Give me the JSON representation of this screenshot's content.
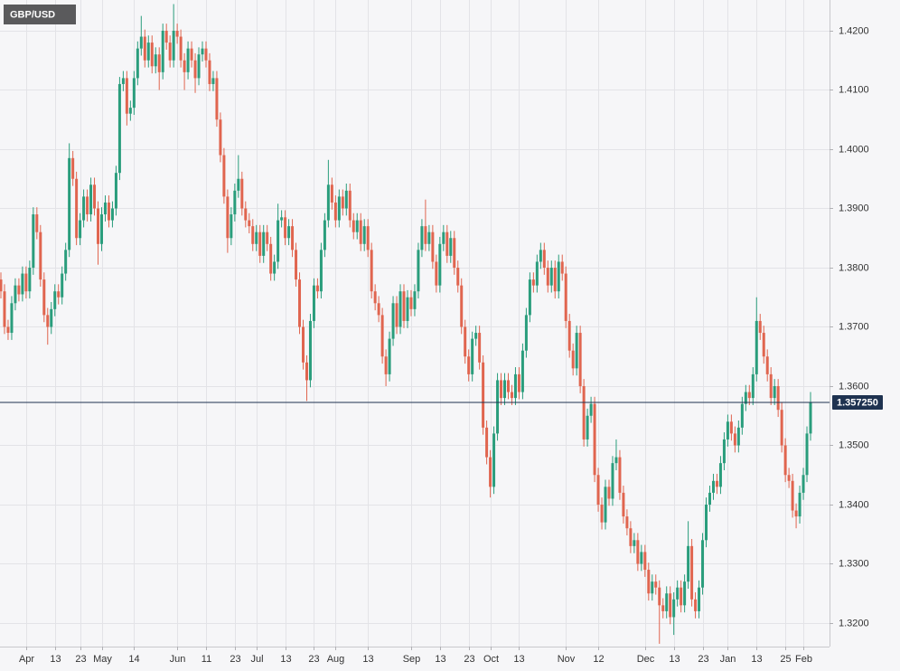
{
  "chart_data": {
    "type": "candlestick",
    "title": "GBP/USD",
    "up_color": "#2a9d7c",
    "down_color": "#e0654f",
    "last_price_color": "#1e3250",
    "grid": true,
    "last_price": {
      "value": 1.35725,
      "label": "1.357250"
    },
    "ylim": [
      1.31603,
      1.42519
    ],
    "yticks": [
      {
        "value": 1.32,
        "label": "1.3200"
      },
      {
        "value": 1.33,
        "label": "1.3300"
      },
      {
        "value": 1.34,
        "label": "1.3400"
      },
      {
        "value": 1.35,
        "label": "1.3500"
      },
      {
        "value": 1.36,
        "label": "1.3600"
      },
      {
        "value": 1.37,
        "label": "1.3700"
      },
      {
        "value": 1.38,
        "label": "1.3800"
      },
      {
        "value": 1.39,
        "label": "1.3900"
      },
      {
        "value": 1.4,
        "label": "1.4000"
      },
      {
        "value": 1.41,
        "label": "1.4100"
      },
      {
        "value": 1.42,
        "label": "1.4200"
      }
    ],
    "categories": [
      null,
      null,
      null,
      null,
      null,
      null,
      null,
      "Apr",
      null,
      null,
      null,
      null,
      null,
      null,
      null,
      "13",
      null,
      null,
      null,
      null,
      null,
      null,
      "23",
      null,
      null,
      null,
      null,
      null,
      "May",
      null,
      null,
      null,
      null,
      null,
      null,
      null,
      null,
      "14",
      null,
      null,
      null,
      null,
      null,
      null,
      null,
      null,
      null,
      null,
      null,
      "Jun",
      null,
      null,
      null,
      null,
      null,
      null,
      null,
      "11",
      null,
      null,
      null,
      null,
      null,
      null,
      null,
      "23",
      null,
      null,
      null,
      null,
      null,
      "Jul",
      null,
      null,
      null,
      null,
      null,
      null,
      null,
      "13",
      null,
      null,
      null,
      null,
      null,
      null,
      null,
      "23",
      null,
      null,
      null,
      null,
      null,
      "Aug",
      null,
      null,
      null,
      null,
      null,
      null,
      null,
      null,
      "13",
      null,
      null,
      null,
      null,
      null,
      null,
      null,
      null,
      null,
      null,
      null,
      "Sep",
      null,
      null,
      null,
      null,
      null,
      null,
      null,
      "13",
      null,
      null,
      null,
      null,
      null,
      null,
      null,
      "23",
      null,
      null,
      null,
      null,
      null,
      "Oct",
      null,
      null,
      null,
      null,
      null,
      null,
      null,
      "13",
      null,
      null,
      null,
      null,
      null,
      null,
      null,
      null,
      null,
      null,
      null,
      null,
      "Nov",
      null,
      null,
      null,
      null,
      null,
      null,
      null,
      null,
      "12",
      null,
      null,
      null,
      null,
      null,
      null,
      null,
      null,
      null,
      null,
      null,
      null,
      "Dec",
      null,
      null,
      null,
      null,
      null,
      null,
      null,
      "13",
      null,
      null,
      null,
      null,
      null,
      null,
      null,
      "23",
      null,
      null,
      null,
      null,
      null,
      null,
      "Jan",
      null,
      null,
      null,
      null,
      null,
      null,
      null,
      "13",
      null,
      null,
      null,
      null,
      null,
      null,
      null,
      "25",
      null,
      null,
      null,
      null,
      "Feb",
      null,
      null
    ],
    "open": [
      1.378,
      1.376,
      1.37,
      1.369,
      1.374,
      1.377,
      1.3755,
      1.379,
      1.376,
      1.38,
      1.389,
      1.386,
      1.378,
      1.372,
      1.37,
      1.373,
      1.376,
      1.375,
      1.379,
      1.383,
      1.3985,
      1.395,
      1.385,
      1.388,
      1.392,
      1.389,
      1.394,
      1.39,
      1.384,
      1.389,
      1.391,
      1.388,
      1.39,
      1.396,
      1.411,
      1.412,
      1.406,
      1.407,
      1.412,
      1.417,
      1.419,
      1.415,
      1.418,
      1.414,
      1.416,
      1.413,
      1.42,
      1.418,
      1.415,
      1.42,
      1.419,
      1.415,
      1.413,
      1.417,
      1.415,
      1.412,
      1.416,
      1.417,
      1.415,
      1.411,
      1.412,
      1.405,
      1.399,
      1.392,
      1.385,
      1.389,
      1.393,
      1.395,
      1.39,
      1.388,
      1.387,
      1.384,
      1.386,
      1.382,
      1.386,
      1.384,
      1.379,
      1.381,
      1.388,
      1.3885,
      1.385,
      1.387,
      1.383,
      1.378,
      1.37,
      1.364,
      1.361,
      1.371,
      1.377,
      1.376,
      1.383,
      1.388,
      1.394,
      1.391,
      1.388,
      1.392,
      1.39,
      1.393,
      1.388,
      1.386,
      1.388,
      1.384,
      1.387,
      1.383,
      1.376,
      1.374,
      1.372,
      1.365,
      1.362,
      1.368,
      1.374,
      1.37,
      1.376,
      1.371,
      1.375,
      1.373,
      1.376,
      1.383,
      1.387,
      1.384,
      1.386,
      1.381,
      1.377,
      1.384,
      1.386,
      1.382,
      1.385,
      1.38,
      1.377,
      1.37,
      1.365,
      1.362,
      1.368,
      1.369,
      1.364,
      1.353,
      1.348,
      1.343,
      1.352,
      1.361,
      1.358,
      1.361,
      1.359,
      1.358,
      1.362,
      1.359,
      1.366,
      1.372,
      1.378,
      1.377,
      1.381,
      1.383,
      1.38,
      1.377,
      1.38,
      1.376,
      1.381,
      1.379,
      1.371,
      1.366,
      1.363,
      1.369,
      1.36,
      1.351,
      1.355,
      1.357,
      1.345,
      1.34,
      1.337,
      1.343,
      1.341,
      1.347,
      1.348,
      1.342,
      1.338,
      1.336,
      1.333,
      1.334,
      1.33,
      1.332,
      1.329,
      1.325,
      1.327,
      1.326,
      1.323,
      1.322,
      1.325,
      1.321,
      1.324,
      1.326,
      1.323,
      1.327,
      1.333,
      1.324,
      1.322,
      1.326,
      1.334,
      1.34,
      1.342,
      1.344,
      1.343,
      1.347,
      1.351,
      1.354,
      1.352,
      1.35,
      1.353,
      1.357,
      1.359,
      1.358,
      1.362,
      1.371,
      1.369,
      1.365,
      1.362,
      1.358,
      1.36,
      1.356,
      1.35,
      1.345,
      1.344,
      1.339,
      1.338,
      1.342,
      1.345,
      1.352
    ],
    "high": [
      1.3792,
      1.3772,
      1.3712,
      1.3752,
      1.3782,
      1.3782,
      1.3802,
      1.3802,
      1.3812,
      1.3902,
      1.3902,
      1.3872,
      1.3792,
      1.3732,
      1.3742,
      1.3772,
      1.3772,
      1.3802,
      1.3842,
      1.401,
      1.3997,
      1.3962,
      1.3892,
      1.3932,
      1.3932,
      1.3952,
      1.3952,
      1.3912,
      1.3902,
      1.3922,
      1.3922,
      1.3912,
      1.3972,
      1.4122,
      1.4132,
      1.4132,
      1.4082,
      1.4132,
      1.4182,
      1.4225,
      1.4202,
      1.4192,
      1.4192,
      1.4172,
      1.4172,
      1.4212,
      1.4212,
      1.4192,
      1.4245,
      1.4212,
      1.4202,
      1.4162,
      1.4182,
      1.4182,
      1.4162,
      1.4172,
      1.4182,
      1.4182,
      1.4162,
      1.4132,
      1.4132,
      1.4062,
      1.4002,
      1.3932,
      1.3902,
      1.3942,
      1.399,
      1.3962,
      1.3912,
      1.3892,
      1.3882,
      1.3872,
      1.3872,
      1.3872,
      1.3872,
      1.3852,
      1.3822,
      1.3908,
      1.3897,
      1.3897,
      1.3882,
      1.3882,
      1.3842,
      1.3792,
      1.3712,
      1.3652,
      1.3722,
      1.3782,
      1.3782,
      1.3842,
      1.3892,
      1.3982,
      1.3952,
      1.3922,
      1.3932,
      1.3932,
      1.3942,
      1.3942,
      1.3892,
      1.3892,
      1.3892,
      1.3882,
      1.3882,
      1.3842,
      1.3772,
      1.3752,
      1.3732,
      1.3662,
      1.3692,
      1.3752,
      1.3752,
      1.3772,
      1.3772,
      1.3762,
      1.3762,
      1.3772,
      1.3842,
      1.3882,
      1.3915,
      1.3872,
      1.3872,
      1.3822,
      1.3852,
      1.3872,
      1.3872,
      1.3862,
      1.3862,
      1.3812,
      1.3782,
      1.3712,
      1.3662,
      1.3692,
      1.3702,
      1.3702,
      1.3652,
      1.3542,
      1.3492,
      1.3532,
      1.3622,
      1.3622,
      1.3622,
      1.3622,
      1.3602,
      1.3632,
      1.3632,
      1.3672,
      1.3732,
      1.3792,
      1.3792,
      1.3822,
      1.3842,
      1.3842,
      1.3812,
      1.3812,
      1.3812,
      1.3822,
      1.3822,
      1.3802,
      1.3722,
      1.3672,
      1.3702,
      1.3702,
      1.3612,
      1.3562,
      1.3582,
      1.3582,
      1.3462,
      1.3412,
      1.3442,
      1.3442,
      1.3482,
      1.351,
      1.3492,
      1.3432,
      1.3392,
      1.3372,
      1.3352,
      1.3352,
      1.3332,
      1.3332,
      1.3302,
      1.3282,
      1.3282,
      1.3272,
      1.3242,
      1.3262,
      1.3262,
      1.3252,
      1.3272,
      1.3272,
      1.3282,
      1.3372,
      1.3342,
      1.3252,
      1.3272,
      1.3352,
      1.3412,
      1.3432,
      1.3452,
      1.3452,
      1.3482,
      1.3522,
      1.3552,
      1.3552,
      1.3532,
      1.3542,
      1.3582,
      1.3602,
      1.3602,
      1.3632,
      1.375,
      1.3722,
      1.3702,
      1.3662,
      1.3632,
      1.3612,
      1.3612,
      1.3572,
      1.3512,
      1.3462,
      1.3452,
      1.3402,
      1.3432,
      1.3462,
      1.3532,
      1.359
    ],
    "low": [
      1.3748,
      1.3688,
      1.3678,
      1.3678,
      1.3728,
      1.3743,
      1.3743,
      1.3748,
      1.3748,
      1.3788,
      1.3848,
      1.3768,
      1.3708,
      1.367,
      1.3688,
      1.3718,
      1.3738,
      1.3738,
      1.3778,
      1.3818,
      1.3938,
      1.3838,
      1.3838,
      1.3868,
      1.3878,
      1.3878,
      1.3888,
      1.3805,
      1.3828,
      1.3878,
      1.3868,
      1.3868,
      1.3888,
      1.3948,
      1.4098,
      1.404,
      1.4048,
      1.4058,
      1.4108,
      1.4158,
      1.4138,
      1.4138,
      1.4128,
      1.4128,
      1.41,
      1.4118,
      1.4168,
      1.4138,
      1.4138,
      1.4178,
      1.4138,
      1.41,
      1.4118,
      1.4138,
      1.4095,
      1.4108,
      1.4148,
      1.4138,
      1.4098,
      1.4098,
      1.4038,
      1.3978,
      1.3908,
      1.3825,
      1.3838,
      1.3878,
      1.3918,
      1.3888,
      1.3868,
      1.3858,
      1.3828,
      1.3828,
      1.3808,
      1.3808,
      1.3828,
      1.3778,
      1.3778,
      1.3798,
      1.3868,
      1.3838,
      1.3838,
      1.3818,
      1.3768,
      1.3688,
      1.3628,
      1.3575,
      1.3598,
      1.3698,
      1.3748,
      1.3748,
      1.3818,
      1.3868,
      1.3898,
      1.3868,
      1.3868,
      1.3888,
      1.3888,
      1.3868,
      1.3848,
      1.3848,
      1.3828,
      1.3828,
      1.3818,
      1.3748,
      1.3728,
      1.3708,
      1.3638,
      1.36,
      1.3608,
      1.3668,
      1.3688,
      1.3688,
      1.3698,
      1.3698,
      1.3718,
      1.3718,
      1.3748,
      1.3818,
      1.3828,
      1.3828,
      1.3798,
      1.3758,
      1.3758,
      1.3828,
      1.3808,
      1.3808,
      1.3788,
      1.3758,
      1.3688,
      1.3638,
      1.3608,
      1.3608,
      1.3668,
      1.3628,
      1.3518,
      1.3468,
      1.3412,
      1.3418,
      1.3508,
      1.3568,
      1.3568,
      1.3578,
      1.3568,
      1.3568,
      1.3578,
      1.3578,
      1.3648,
      1.3708,
      1.3758,
      1.3758,
      1.3798,
      1.3788,
      1.3758,
      1.3758,
      1.3748,
      1.3748,
      1.3778,
      1.3698,
      1.3648,
      1.3618,
      1.3618,
      1.3588,
      1.3498,
      1.3498,
      1.3538,
      1.3438,
      1.3388,
      1.3358,
      1.3358,
      1.3398,
      1.3398,
      1.3458,
      1.3408,
      1.3368,
      1.3348,
      1.3318,
      1.3318,
      1.3288,
      1.3288,
      1.3278,
      1.3238,
      1.3238,
      1.3248,
      1.3165,
      1.3208,
      1.3208,
      1.3198,
      1.318,
      1.3228,
      1.3218,
      1.3218,
      1.3258,
      1.3228,
      1.3208,
      1.3208,
      1.3248,
      1.3328,
      1.3388,
      1.3408,
      1.3418,
      1.3418,
      1.3458,
      1.3498,
      1.3508,
      1.3488,
      1.3488,
      1.3518,
      1.3558,
      1.3568,
      1.3568,
      1.3608,
      1.3678,
      1.3638,
      1.3608,
      1.3568,
      1.3568,
      1.3548,
      1.3488,
      1.3438,
      1.3428,
      1.3378,
      1.336,
      1.3368,
      1.3408,
      1.3438,
      1.3508
    ],
    "close": [
      1.376,
      1.37,
      1.369,
      1.374,
      1.377,
      1.3755,
      1.379,
      1.376,
      1.38,
      1.389,
      1.386,
      1.378,
      1.372,
      1.37,
      1.373,
      1.376,
      1.375,
      1.379,
      1.383,
      1.3985,
      1.395,
      1.385,
      1.388,
      1.392,
      1.389,
      1.394,
      1.39,
      1.384,
      1.389,
      1.391,
      1.388,
      1.39,
      1.396,
      1.411,
      1.412,
      1.406,
      1.407,
      1.412,
      1.417,
      1.419,
      1.415,
      1.418,
      1.414,
      1.416,
      1.413,
      1.42,
      1.418,
      1.415,
      1.42,
      1.419,
      1.415,
      1.413,
      1.417,
      1.415,
      1.412,
      1.416,
      1.417,
      1.415,
      1.411,
      1.412,
      1.405,
      1.399,
      1.392,
      1.385,
      1.389,
      1.393,
      1.395,
      1.39,
      1.388,
      1.387,
      1.384,
      1.386,
      1.382,
      1.386,
      1.384,
      1.379,
      1.381,
      1.388,
      1.3885,
      1.385,
      1.387,
      1.383,
      1.378,
      1.37,
      1.364,
      1.361,
      1.371,
      1.377,
      1.376,
      1.383,
      1.388,
      1.394,
      1.391,
      1.388,
      1.392,
      1.39,
      1.393,
      1.388,
      1.386,
      1.388,
      1.384,
      1.387,
      1.383,
      1.376,
      1.374,
      1.372,
      1.365,
      1.362,
      1.368,
      1.374,
      1.37,
      1.376,
      1.371,
      1.375,
      1.373,
      1.376,
      1.383,
      1.387,
      1.384,
      1.386,
      1.381,
      1.377,
      1.384,
      1.386,
      1.382,
      1.385,
      1.38,
      1.377,
      1.37,
      1.365,
      1.362,
      1.368,
      1.369,
      1.364,
      1.353,
      1.348,
      1.343,
      1.352,
      1.361,
      1.358,
      1.361,
      1.359,
      1.358,
      1.362,
      1.359,
      1.366,
      1.372,
      1.378,
      1.377,
      1.381,
      1.383,
      1.38,
      1.377,
      1.38,
      1.376,
      1.381,
      1.379,
      1.371,
      1.366,
      1.363,
      1.369,
      1.36,
      1.351,
      1.355,
      1.357,
      1.345,
      1.34,
      1.337,
      1.343,
      1.341,
      1.347,
      1.348,
      1.342,
      1.338,
      1.336,
      1.333,
      1.334,
      1.33,
      1.332,
      1.329,
      1.325,
      1.327,
      1.326,
      1.323,
      1.322,
      1.325,
      1.321,
      1.324,
      1.326,
      1.323,
      1.327,
      1.333,
      1.324,
      1.322,
      1.326,
      1.334,
      1.34,
      1.342,
      1.344,
      1.343,
      1.347,
      1.351,
      1.354,
      1.352,
      1.35,
      1.353,
      1.357,
      1.359,
      1.358,
      1.362,
      1.371,
      1.369,
      1.365,
      1.362,
      1.358,
      1.36,
      1.356,
      1.35,
      1.345,
      1.344,
      1.339,
      1.338,
      1.342,
      1.345,
      1.352,
      1.35725
    ]
  }
}
